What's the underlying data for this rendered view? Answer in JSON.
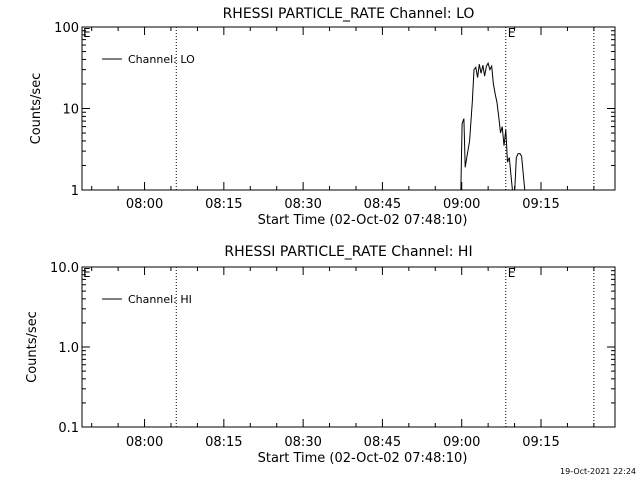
{
  "timestamp": "19-Oct-2021 22:24",
  "chart_data": [
    {
      "type": "line",
      "title": "RHESSI PARTICLE_RATE Channel: LO",
      "xlabel": "Start Time (02-Oct-02 07:48:10)",
      "ylabel": "Counts/sec",
      "y_scale": "log",
      "ylim": [
        1,
        100
      ],
      "xlim": [
        "07:48:10",
        "09:29:00"
      ],
      "x_tick_labels": [
        "08:00",
        "08:15",
        "08:30",
        "08:45",
        "09:00",
        "09:15"
      ],
      "y_tick_labels": [
        "1",
        "10",
        "100"
      ],
      "legend": {
        "position": "top-left",
        "entries": [
          "Channel: LO"
        ]
      },
      "markers": [
        {
          "time": "08:06:00",
          "label": ""
        },
        {
          "time": "09:08:20",
          "label": "E"
        },
        {
          "time": "09:25:00",
          "label": ""
        }
      ],
      "corner_label": "E",
      "series": [
        {
          "name": "Channel: LO",
          "x": [
            "08:59:50",
            "09:00:05",
            "09:00:25",
            "09:00:40",
            "09:01:00",
            "09:01:30",
            "09:02:00",
            "09:02:20",
            "09:02:40",
            "09:03:00",
            "09:03:20",
            "09:03:40",
            "09:04:00",
            "09:04:20",
            "09:04:40",
            "09:05:00",
            "09:05:20",
            "09:05:40",
            "09:06:00",
            "09:06:20",
            "09:06:40",
            "09:07:00",
            "09:07:20",
            "09:07:40",
            "09:08:00",
            "09:08:20",
            "09:08:40",
            "09:09:00",
            "09:09:20",
            "09:09:40",
            "09:10:00",
            "09:10:20",
            "09:10:40",
            "09:11:00",
            "09:11:20",
            "09:11:40",
            "09:12:00"
          ],
          "values": [
            0.9,
            6.5,
            7.5,
            1.9,
            2.6,
            4.0,
            12.0,
            30.0,
            32.0,
            24.0,
            35.0,
            27.0,
            34.0,
            25.0,
            33.0,
            36.0,
            30.0,
            33.0,
            20.0,
            15.0,
            12.0,
            8.0,
            5.0,
            6.0,
            3.5,
            5.5,
            2.2,
            2.5,
            1.5,
            0.9,
            0.9,
            2.5,
            2.8,
            2.8,
            2.6,
            1.5,
            0.9
          ]
        }
      ]
    },
    {
      "type": "line",
      "title": "RHESSI PARTICLE_RATE Channel: HI",
      "xlabel": "Start Time (02-Oct-02 07:48:10)",
      "ylabel": "Counts/sec",
      "y_scale": "log",
      "ylim": [
        0.1,
        10
      ],
      "xlim": [
        "07:48:10",
        "09:29:00"
      ],
      "x_tick_labels": [
        "08:00",
        "08:15",
        "08:30",
        "08:45",
        "09:00",
        "09:15"
      ],
      "y_tick_labels": [
        "0.1",
        "1.0",
        "10.0"
      ],
      "legend": {
        "position": "top-left",
        "entries": [
          "Channel: HI"
        ]
      },
      "markers": [
        {
          "time": "08:06:00",
          "label": ""
        },
        {
          "time": "09:08:20",
          "label": "E"
        },
        {
          "time": "09:25:00",
          "label": ""
        }
      ],
      "corner_label": "E",
      "series": [
        {
          "name": "Channel: HI",
          "x": [],
          "values": []
        }
      ]
    }
  ]
}
